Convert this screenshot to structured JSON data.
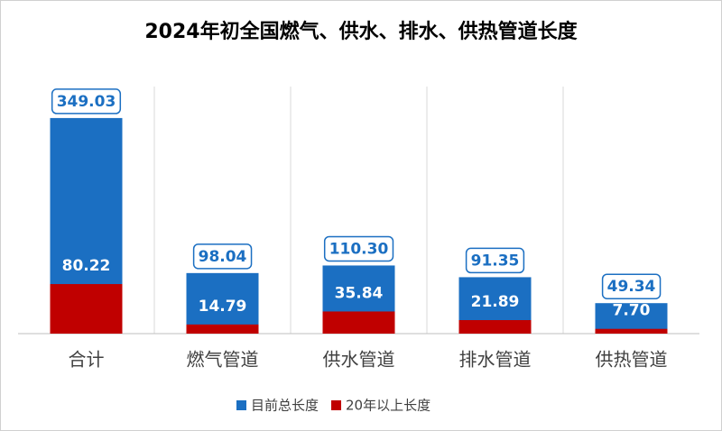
{
  "chart_data": {
    "type": "bar",
    "title": "2024年初全国燃气、供水、排水、供热管道长度",
    "categories": [
      "合计",
      "燃气管道",
      "供水管道",
      "排水管道",
      "供热管道"
    ],
    "series": [
      {
        "name": "目前总长度",
        "color": "#1b6fc2",
        "values": [
          349.03,
          98.04,
          110.3,
          91.35,
          49.34
        ],
        "value_labels": [
          "349.03",
          "98.04",
          "110.30",
          "91.35",
          "49.34"
        ]
      },
      {
        "name": "20年以上长度",
        "color": "#c00000",
        "values": [
          80.22,
          14.79,
          35.84,
          21.89,
          7.7
        ],
        "value_labels": [
          "80.22",
          "14.79",
          "35.84",
          "21.89",
          "7.70"
        ]
      }
    ],
    "ylim": [
      0,
      400
    ]
  }
}
